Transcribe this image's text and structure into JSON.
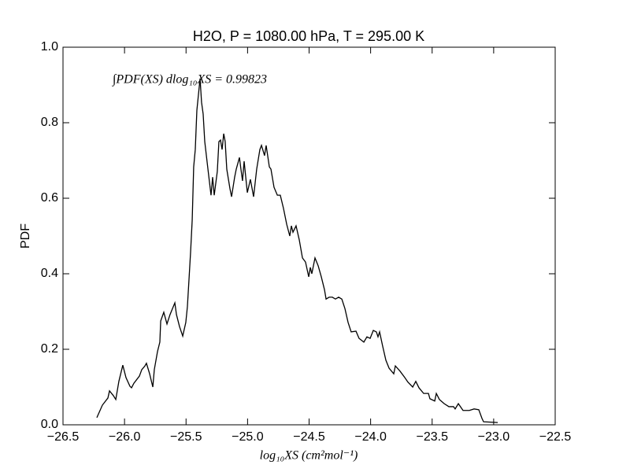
{
  "chart_data": {
    "type": "line",
    "title": "H2O, P = 1080.00 hPa, T = 295.00 K",
    "xlabel": "log₁₀XS (cm²mol⁻¹)",
    "ylabel": "PDF",
    "annotation": "∫PDF(XS) dlog₁₀XS = 0.99823",
    "color": "#000000",
    "xlim": [
      -26.5,
      -22.5
    ],
    "ylim": [
      0,
      1
    ],
    "xticks": [
      {
        "value": -26.5,
        "label": "−26.5"
      },
      {
        "value": -26,
        "label": "−26.0"
      },
      {
        "value": -25.5,
        "label": "−25.5"
      },
      {
        "value": -25,
        "label": "−25.0"
      },
      {
        "value": -24.5,
        "label": "−24.5"
      },
      {
        "value": -24,
        "label": "−24.0"
      },
      {
        "value": -23.5,
        "label": "−23.5"
      },
      {
        "value": -23,
        "label": "−23.0"
      },
      {
        "value": -22.5,
        "label": "−22.5"
      }
    ],
    "yticks": [
      {
        "value": 0,
        "label": "0.0"
      },
      0.2,
      0.4,
      0.6,
      0.8,
      {
        "value": 1,
        "label": "1.0"
      }
    ],
    "x": [
      -26.225,
      -26.18,
      -26.135,
      -26.122,
      -26.09,
      -26.071,
      -26.046,
      -26.014,
      -25.988,
      -25.956,
      -25.943,
      -25.924,
      -25.879,
      -25.86,
      -25.834,
      -25.822,
      -25.796,
      -25.77,
      -25.758,
      -25.732,
      -25.713,
      -25.706,
      -25.681,
      -25.655,
      -25.63,
      -25.591,
      -25.578,
      -25.553,
      -25.527,
      -25.502,
      -25.489,
      -25.476,
      -25.463,
      -25.45,
      -25.438,
      -25.425,
      -25.412,
      -25.386,
      -25.374,
      -25.361,
      -25.348,
      -25.322,
      -25.297,
      -25.284,
      -25.271,
      -25.246,
      -25.233,
      -25.22,
      -25.207,
      -25.194,
      -25.182,
      -25.169,
      -25.143,
      -25.13,
      -25.105,
      -25.092,
      -25.066,
      -25.054,
      -25.041,
      -25.028,
      -25.002,
      -24.977,
      -24.951,
      -24.926,
      -24.9,
      -24.887,
      -24.862,
      -24.849,
      -24.823,
      -24.81,
      -24.785,
      -24.758,
      -24.734,
      -24.708,
      -24.682,
      -24.657,
      -24.644,
      -24.631,
      -24.606,
      -24.58,
      -24.554,
      -24.529,
      -24.503,
      -24.49,
      -24.478,
      -24.452,
      -24.426,
      -24.401,
      -24.375,
      -24.362,
      -24.337,
      -24.311,
      -24.286,
      -24.26,
      -24.234,
      -24.209,
      -24.183,
      -24.158,
      -24.119,
      -24.094,
      -24.055,
      -24.03,
      -24.004,
      -23.978,
      -23.953,
      -23.94,
      -23.927,
      -23.902,
      -23.876,
      -23.85,
      -23.812,
      -23.799,
      -23.761,
      -23.722,
      -23.697,
      -23.658,
      -23.633,
      -23.607,
      -23.569,
      -23.53,
      -23.518,
      -23.479,
      -23.466,
      -23.441,
      -23.402,
      -23.364,
      -23.326,
      -23.313,
      -23.287,
      -23.249,
      -23.198,
      -23.159,
      -23.121,
      -23.095,
      -23.082,
      -22.967
    ],
    "values": [
      0.019,
      0.052,
      0.071,
      0.09,
      0.077,
      0.067,
      0.115,
      0.158,
      0.125,
      0.102,
      0.098,
      0.11,
      0.129,
      0.146,
      0.156,
      0.163,
      0.135,
      0.1,
      0.146,
      0.194,
      0.219,
      0.275,
      0.298,
      0.267,
      0.292,
      0.323,
      0.292,
      0.26,
      0.235,
      0.271,
      0.313,
      0.385,
      0.458,
      0.542,
      0.683,
      0.729,
      0.833,
      0.917,
      0.854,
      0.823,
      0.75,
      0.677,
      0.608,
      0.656,
      0.608,
      0.671,
      0.75,
      0.754,
      0.729,
      0.771,
      0.75,
      0.677,
      0.625,
      0.604,
      0.656,
      0.677,
      0.708,
      0.677,
      0.646,
      0.698,
      0.615,
      0.65,
      0.604,
      0.677,
      0.729,
      0.74,
      0.713,
      0.74,
      0.683,
      0.677,
      0.629,
      0.608,
      0.608,
      0.573,
      0.531,
      0.5,
      0.527,
      0.51,
      0.527,
      0.49,
      0.442,
      0.431,
      0.392,
      0.417,
      0.4,
      0.442,
      0.421,
      0.392,
      0.358,
      0.333,
      0.338,
      0.338,
      0.333,
      0.338,
      0.333,
      0.308,
      0.271,
      0.246,
      0.248,
      0.229,
      0.219,
      0.233,
      0.229,
      0.25,
      0.246,
      0.233,
      0.246,
      0.208,
      0.171,
      0.15,
      0.135,
      0.156,
      0.142,
      0.125,
      0.113,
      0.1,
      0.115,
      0.098,
      0.083,
      0.083,
      0.069,
      0.063,
      0.083,
      0.067,
      0.056,
      0.048,
      0.048,
      0.042,
      0.056,
      0.038,
      0.038,
      0.042,
      0.04,
      0.017,
      0.008,
      0.006
    ]
  }
}
